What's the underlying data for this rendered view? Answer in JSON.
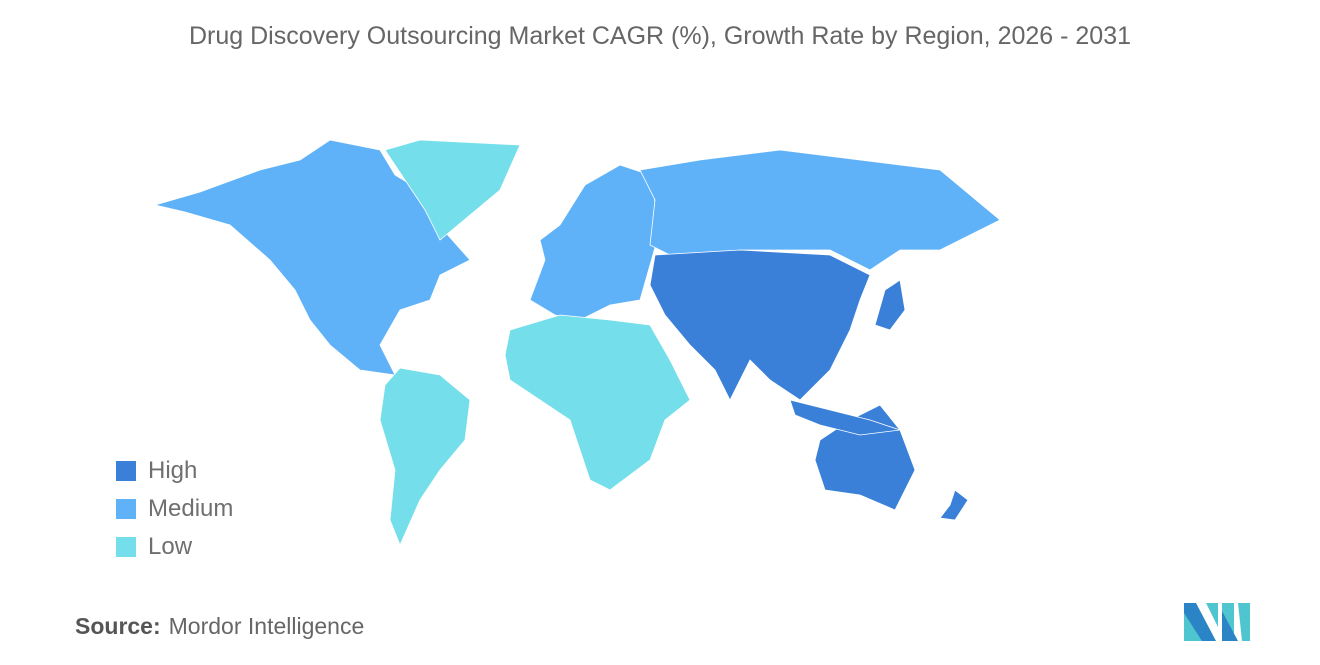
{
  "title": "Drug Discovery Outsourcing Market CAGR (%), Growth Rate by Region, 2026 - 2031",
  "colors": {
    "high": "#3a80d9",
    "medium": "#5fb2f8",
    "low": "#74dfeb",
    "no_data": "#a7a7a7"
  },
  "chart_data": {
    "type": "choropleth",
    "legend": [
      {
        "label": "High",
        "color": "#3a80d9"
      },
      {
        "label": "Medium",
        "color": "#5fb2f8"
      },
      {
        "label": "Low",
        "color": "#74dfeb"
      }
    ],
    "legend_placement": "bottom-left",
    "regions": [
      {
        "region": "North America",
        "level": "Medium"
      },
      {
        "region": "Europe",
        "level": "Medium"
      },
      {
        "region": "Russia",
        "level": "Medium"
      },
      {
        "region": "Asia-Pacific",
        "level": "High"
      },
      {
        "region": "South America",
        "level": "Low"
      },
      {
        "region": "Middle East and Africa",
        "level": "Low"
      },
      {
        "region": "Greenland",
        "level": "Low"
      }
    ]
  },
  "source": {
    "label": "Source:",
    "value": "Mordor Intelligence"
  }
}
